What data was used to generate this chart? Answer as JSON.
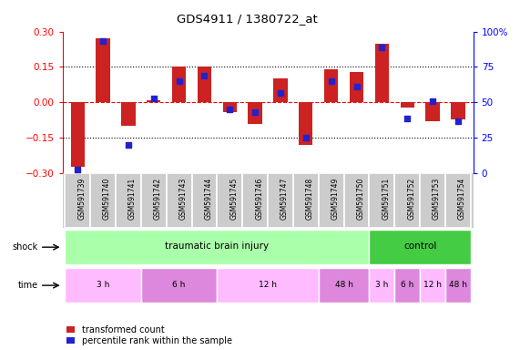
{
  "title": "GDS4911 / 1380722_at",
  "samples": [
    "GSM591739",
    "GSM591740",
    "GSM591741",
    "GSM591742",
    "GSM591743",
    "GSM591744",
    "GSM591745",
    "GSM591746",
    "GSM591747",
    "GSM591748",
    "GSM591749",
    "GSM591750",
    "GSM591751",
    "GSM591752",
    "GSM591753",
    "GSM591754"
  ],
  "red_values": [
    -0.27,
    0.27,
    -0.1,
    0.01,
    0.15,
    0.15,
    -0.04,
    -0.09,
    0.1,
    -0.18,
    0.14,
    0.13,
    0.25,
    -0.02,
    -0.08,
    -0.07
  ],
  "blue_percentile": [
    3,
    93,
    20,
    53,
    65,
    69,
    45,
    43,
    57,
    25,
    65,
    61,
    89,
    39,
    51,
    37
  ],
  "shock_groups": [
    {
      "label": "traumatic brain injury",
      "start": 0,
      "end": 12,
      "color": "#aaffaa"
    },
    {
      "label": "control",
      "start": 12,
      "end": 16,
      "color": "#44cc44"
    }
  ],
  "time_groups": [
    {
      "label": "3 h",
      "start": 0,
      "end": 3,
      "color": "#ffbbff"
    },
    {
      "label": "6 h",
      "start": 3,
      "end": 6,
      "color": "#dd88dd"
    },
    {
      "label": "12 h",
      "start": 6,
      "end": 10,
      "color": "#ffbbff"
    },
    {
      "label": "48 h",
      "start": 10,
      "end": 12,
      "color": "#dd88dd"
    },
    {
      "label": "3 h",
      "start": 12,
      "end": 13,
      "color": "#ffbbff"
    },
    {
      "label": "6 h",
      "start": 13,
      "end": 14,
      "color": "#dd88dd"
    },
    {
      "label": "12 h",
      "start": 14,
      "end": 15,
      "color": "#ffbbff"
    },
    {
      "label": "48 h",
      "start": 15,
      "end": 16,
      "color": "#dd88dd"
    }
  ],
  "ylim": [
    -0.3,
    0.3
  ],
  "y2lim": [
    0,
    100
  ],
  "yticks": [
    -0.3,
    -0.15,
    0,
    0.15,
    0.3
  ],
  "y2ticks": [
    0,
    25,
    50,
    75,
    100
  ],
  "bar_color": "#cc2222",
  "dot_color": "#2222cc",
  "label_bg": "#cccccc",
  "plot_bg": "#ffffff"
}
